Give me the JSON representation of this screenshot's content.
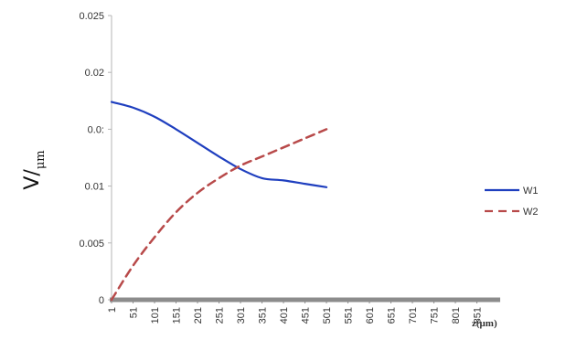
{
  "chart_data": {
    "type": "line",
    "x": [
      1,
      51,
      101,
      151,
      201,
      251,
      301,
      351,
      401,
      451,
      501
    ],
    "series": [
      {
        "name": "W1",
        "color": "#1f3fbf",
        "dash": "solid",
        "values": [
          0.0174,
          0.0169,
          0.0161,
          0.015,
          0.0138,
          0.0126,
          0.0115,
          0.0107,
          0.0105,
          0.0102,
          0.0099
        ]
      },
      {
        "name": "W2",
        "color": "#b84a4a",
        "dash": "dashed",
        "values": [
          0.0,
          0.003,
          0.0055,
          0.0077,
          0.0094,
          0.0107,
          0.0118,
          0.0126,
          0.0134,
          0.0142,
          0.015
        ]
      }
    ],
    "x_tick_labels": [
      "1",
      "51",
      "101",
      "151",
      "201",
      "251",
      "301",
      "351",
      "401",
      "451",
      "501",
      "551",
      "601",
      "651",
      "701",
      "751",
      "801",
      "851"
    ],
    "y_tick_values": [
      0,
      0.005,
      0.01,
      0.015,
      0.02,
      0.025
    ],
    "y_tick_labels": [
      "0",
      "0.005",
      "0.01",
      "0.0:",
      "0.02",
      "0.025"
    ],
    "xlim": [
      1,
      901
    ],
    "ylim": [
      0,
      0.025
    ],
    "ylabel": "V/",
    "ylabel_sub": "μm",
    "xlabel": "z(μm)",
    "legend_position": "right",
    "grid": false,
    "x_axis_color": "#8c8c8c",
    "y_axis_color": "#b5b5b5"
  }
}
